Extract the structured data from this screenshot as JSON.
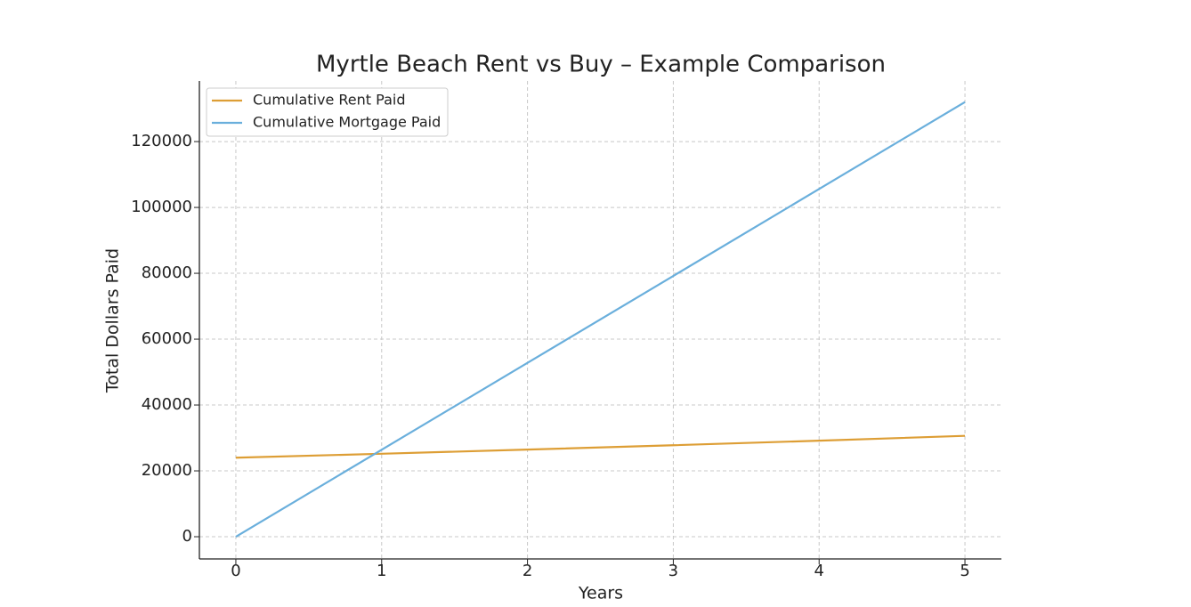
{
  "chart_data": {
    "type": "line",
    "title": "Myrtle Beach Rent vs Buy – Example Comparison",
    "x_label": "Years",
    "y_label": "Total Dollars Paid",
    "x": [
      0,
      1,
      2,
      3,
      4,
      5
    ],
    "series": [
      {
        "name": "Cumulative Rent Paid",
        "color": "#dd9e35",
        "values": [
          24000,
          25200,
          26460,
          27780,
          29170,
          30630
        ]
      },
      {
        "name": "Cumulative Mortgage Paid",
        "color": "#6aafdc",
        "values": [
          0,
          26400,
          52800,
          79200,
          105600,
          132000
        ]
      }
    ],
    "xlim": [
      -0.25,
      5.25
    ],
    "xticks": [
      0,
      1,
      2,
      3,
      4,
      5
    ],
    "ylim": [
      -6750,
      138400
    ],
    "yticks": [
      0,
      20000,
      40000,
      60000,
      80000,
      100000,
      120000
    ],
    "grid": true,
    "legend": "upper-left"
  }
}
